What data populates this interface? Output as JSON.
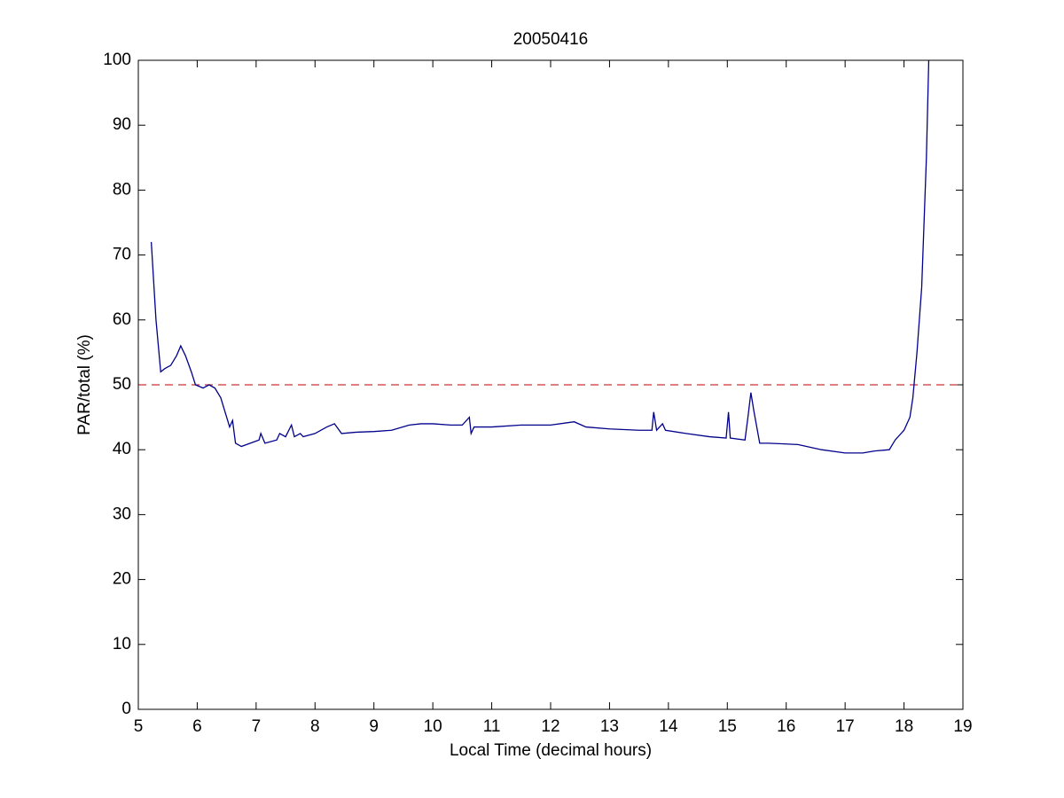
{
  "chart_data": {
    "type": "line",
    "title": "20050416",
    "x_label": "Local Time (decimal hours)",
    "y_label": "PAR/total (%)",
    "x": [
      5.22,
      5.3,
      5.38,
      5.45,
      5.55,
      5.65,
      5.72,
      5.8,
      5.9,
      5.97,
      6.1,
      6.2,
      6.3,
      6.4,
      6.5,
      6.55,
      6.6,
      6.65,
      6.75,
      6.9,
      7.05,
      7.08,
      7.15,
      7.35,
      7.4,
      7.5,
      7.6,
      7.65,
      7.75,
      7.8,
      8.0,
      8.2,
      8.33,
      8.45,
      8.7,
      9.0,
      9.3,
      9.6,
      9.8,
      10.0,
      10.3,
      10.5,
      10.62,
      10.65,
      10.7,
      11.0,
      11.5,
      12.0,
      12.4,
      12.6,
      13.0,
      13.5,
      13.72,
      13.75,
      13.8,
      13.9,
      13.95,
      14.3,
      14.7,
      14.98,
      15.02,
      15.05,
      15.3,
      15.35,
      15.4,
      15.45,
      15.55,
      15.7,
      16.2,
      16.6,
      17.0,
      17.3,
      17.5,
      17.75,
      17.85,
      18.0,
      18.1,
      18.15,
      18.22,
      18.3,
      18.38,
      18.42
    ],
    "series": [
      {
        "color": "#00008b",
        "values": [
          72,
          60,
          52,
          52.5,
          53,
          54.5,
          56,
          54.5,
          52,
          50,
          49.5,
          50,
          49.5,
          48,
          45,
          43.5,
          44.5,
          41,
          40.5,
          41,
          41.5,
          42.5,
          41,
          41.5,
          42.5,
          42,
          43.8,
          42,
          42.5,
          42,
          42.5,
          43.5,
          44,
          42.5,
          42.7,
          42.8,
          43,
          43.8,
          44,
          44,
          43.8,
          43.8,
          45,
          42.5,
          43.5,
          43.5,
          43.8,
          43.8,
          44.3,
          43.5,
          43.2,
          43,
          43,
          45.8,
          43,
          44,
          43,
          42.5,
          42,
          41.8,
          45.8,
          41.8,
          41.5,
          45,
          48.8,
          46,
          41,
          41,
          40.8,
          40,
          39.5,
          39.5,
          39.8,
          40,
          41.5,
          43,
          45,
          48,
          55,
          65,
          85,
          100
        ]
      }
    ],
    "reference_line": {
      "value": 50,
      "color": "#cc3333",
      "dashed": true
    },
    "xlim": [
      5,
      19
    ],
    "xticks": [
      5,
      6,
      7,
      8,
      9,
      10,
      11,
      12,
      13,
      14,
      15,
      16,
      17,
      18,
      19
    ],
    "ylim": [
      0,
      100
    ],
    "yticks": [
      0,
      10,
      20,
      30,
      40,
      50,
      60,
      70,
      80,
      90,
      100
    ]
  }
}
